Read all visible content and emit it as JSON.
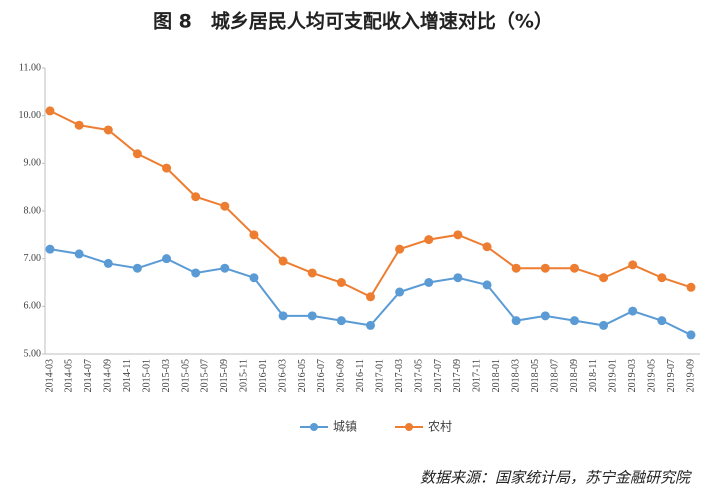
{
  "chart_data": {
    "type": "line",
    "title": "图 8　城乡居民人均可支配收入增速对比（%）",
    "source": "数据来源：国家统计局，苏宁金融研究院",
    "xticks": [
      "2014-03",
      "2014-05",
      "2014-07",
      "2014-09",
      "2014-11",
      "2015-01",
      "2015-03",
      "2015-05",
      "2015-07",
      "2015-09",
      "2015-11",
      "2016-01",
      "2016-03",
      "2016-05",
      "2016-07",
      "2016-09",
      "2016-11",
      "2017-01",
      "2017-03",
      "2017-05",
      "2017-07",
      "2017-09",
      "2017-11",
      "2018-01",
      "2018-03",
      "2018-05",
      "2018-07",
      "2018-09",
      "2018-11",
      "2019-01",
      "2019-03",
      "2019-05",
      "2019-07",
      "2019-09"
    ],
    "series": [
      {
        "name": "城镇",
        "color": "#5b9bd5",
        "values": [
          7.2,
          7.1,
          6.9,
          6.8,
          7.0,
          6.7,
          6.8,
          6.6,
          5.8,
          5.8,
          5.7,
          5.6,
          6.3,
          6.5,
          6.6,
          6.45,
          5.7,
          5.8,
          5.7,
          5.6,
          5.9,
          5.7,
          5.4
        ]
      },
      {
        "name": "农村",
        "color": "#ed7d31",
        "values": [
          10.1,
          9.8,
          9.7,
          9.2,
          8.9,
          8.3,
          8.1,
          7.5,
          6.95,
          6.7,
          6.5,
          6.2,
          7.2,
          7.4,
          7.5,
          7.25,
          6.8,
          6.8,
          6.8,
          6.6,
          6.87,
          6.6,
          6.4
        ]
      }
    ],
    "ylim": [
      5,
      11
    ],
    "yticks": [
      {
        "value": 5,
        "label": "5.00"
      },
      {
        "value": 6,
        "label": "6.00"
      },
      {
        "value": 7,
        "label": "7.00"
      },
      {
        "value": 8,
        "label": "8.00"
      },
      {
        "value": 9,
        "label": "9.00"
      },
      {
        "value": 10,
        "label": "10.00"
      },
      {
        "value": 11,
        "label": "11.00"
      }
    ],
    "legend": "bottom"
  }
}
